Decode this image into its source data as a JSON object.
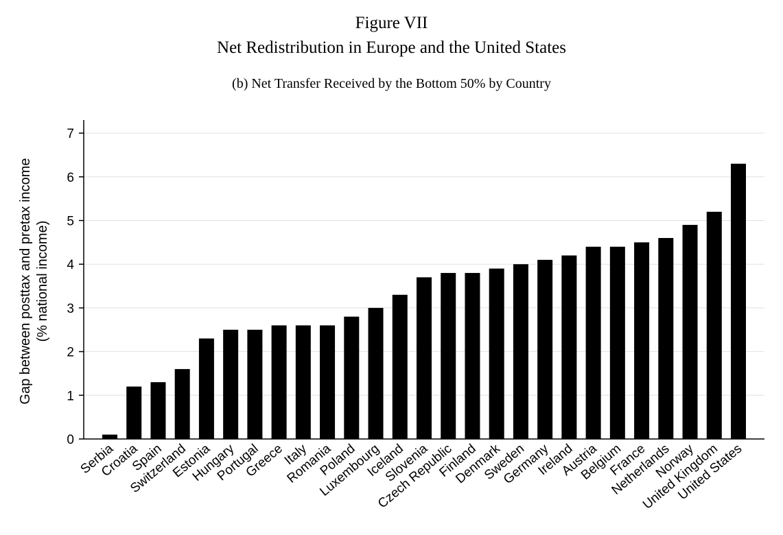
{
  "figure": {
    "label": "Figure VII",
    "title": "Net Redistribution in Europe and the United States",
    "subtitle": "(b) Net Transfer Received by the Bottom 50% by Country"
  },
  "chart_data": {
    "type": "bar",
    "categories": [
      "Serbia",
      "Croatia",
      "Spain",
      "Switzerland",
      "Estonia",
      "Hungary",
      "Portugal",
      "Greece",
      "Italy",
      "Romania",
      "Poland",
      "Luxembourg",
      "Iceland",
      "Slovenia",
      "Czech Republic",
      "Finland",
      "Denmark",
      "Sweden",
      "Germany",
      "Ireland",
      "Austria",
      "Belgium",
      "France",
      "Netherlands",
      "Norway",
      "United Kingdom",
      "United States"
    ],
    "values": [
      0.1,
      1.2,
      1.3,
      1.6,
      2.3,
      2.5,
      2.5,
      2.6,
      2.6,
      2.6,
      2.8,
      3.0,
      3.3,
      3.7,
      3.8,
      3.8,
      3.9,
      4.0,
      4.1,
      4.2,
      4.4,
      4.4,
      4.5,
      4.6,
      4.9,
      5.2,
      6.3
    ],
    "ylabel_line1": "Gap between posttax and pretax income",
    "ylabel_line2": "(% national income)",
    "xlabel": "",
    "ylim": [
      0,
      7.3
    ],
    "yticks": [
      0,
      1,
      2,
      3,
      4,
      5,
      6,
      7
    ],
    "grid": true,
    "bar_color": "#000000",
    "grid_color": "#e0e0e0"
  }
}
